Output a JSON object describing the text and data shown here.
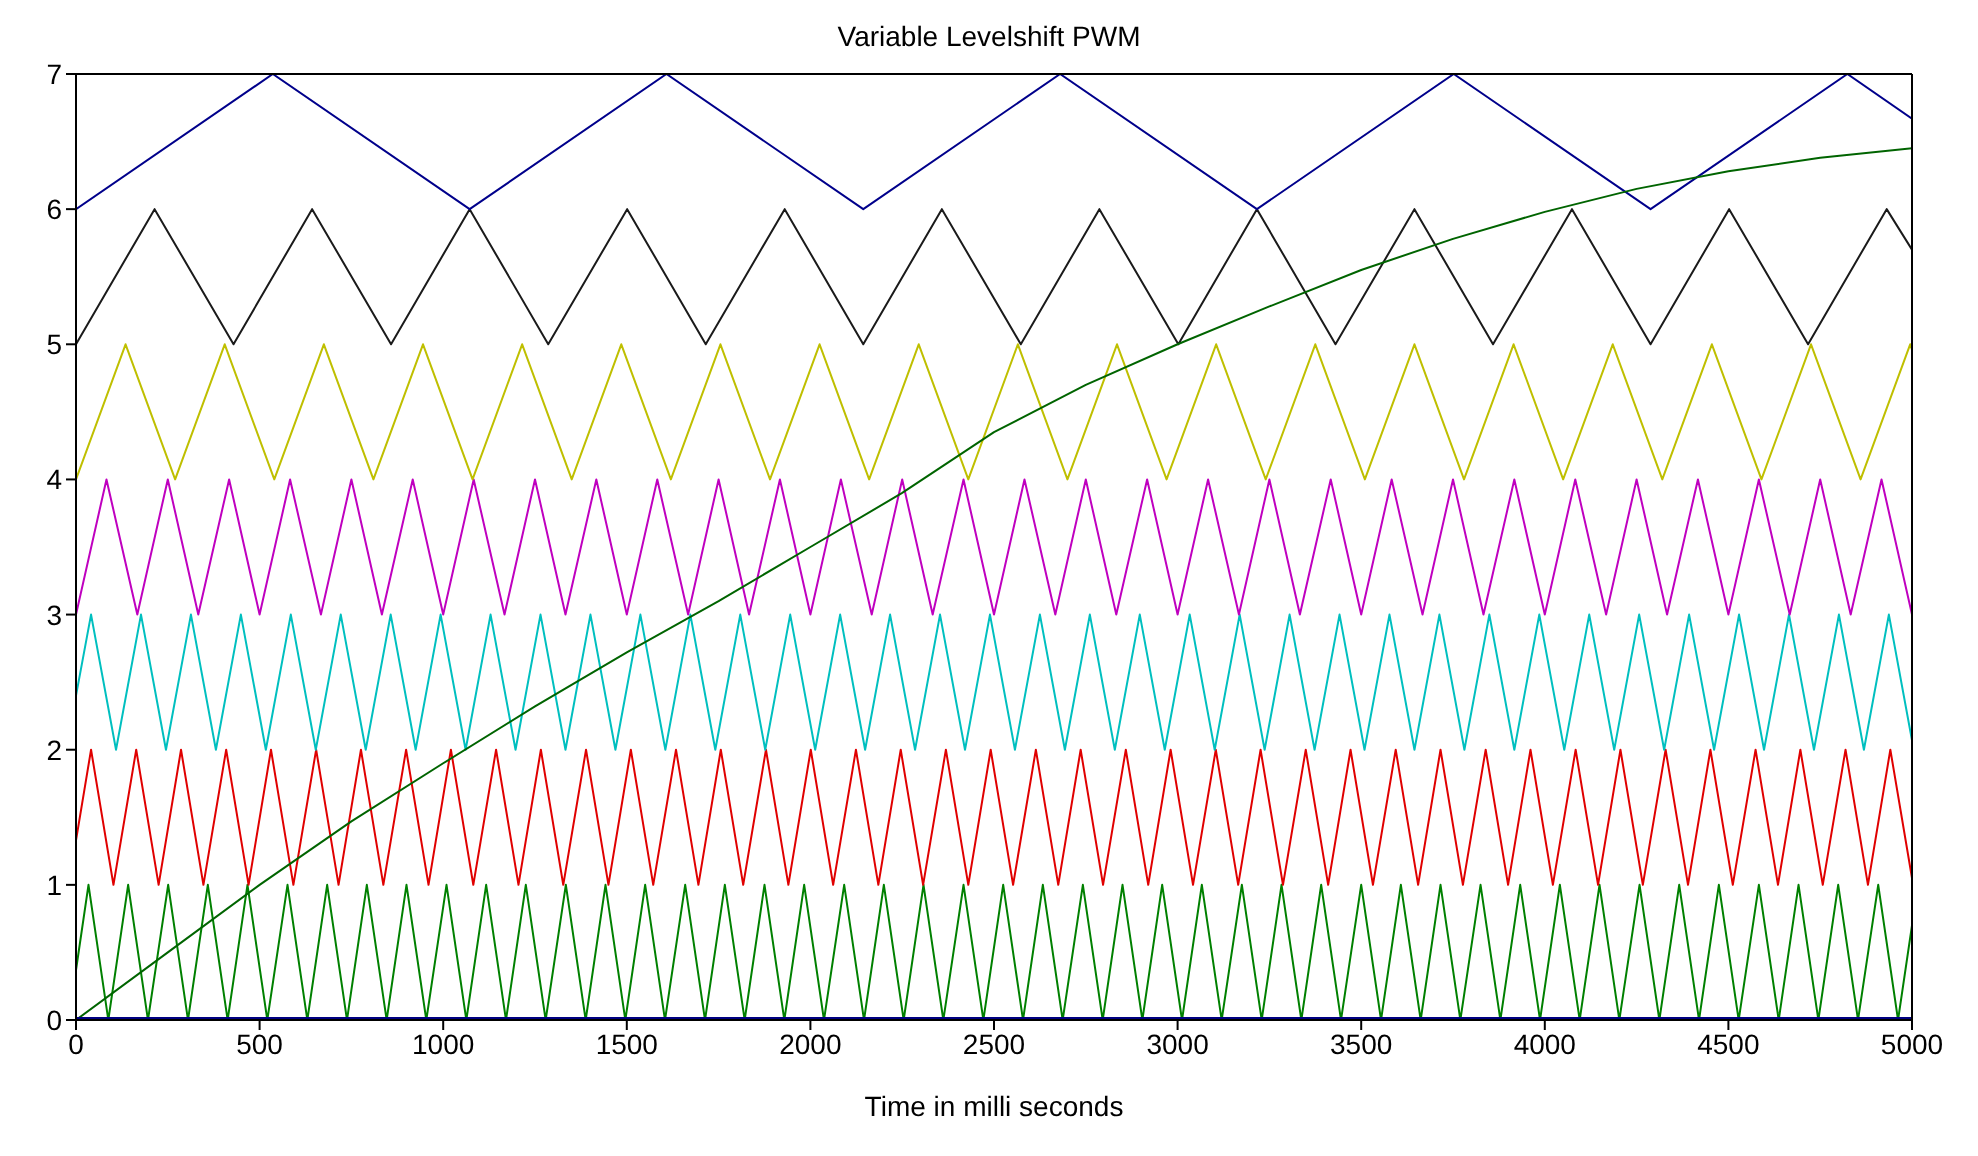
{
  "chart_data": {
    "type": "line",
    "title": "Variable Levelshift PWM",
    "xlabel": "Time in milli seconds",
    "xlim": [
      0,
      5000
    ],
    "xticks": [
      0,
      500,
      1000,
      1500,
      2000,
      2500,
      3000,
      3500,
      4000,
      4500,
      5000
    ],
    "ylim": [
      0,
      7
    ],
    "yticks": [
      0,
      1,
      2,
      3,
      4,
      5,
      6,
      7
    ],
    "grid": false,
    "marker": "none",
    "line_style": "solid",
    "series": [
      {
        "color": "#000080",
        "x": [
          0,
          5000
        ],
        "values": [
          0,
          0
        ]
      },
      {
        "color": "#008000",
        "x": [
          0,
          34,
          88,
          142,
          196,
          251,
          305,
          359,
          413,
          467,
          521,
          576,
          630,
          684,
          738,
          792,
          846,
          900,
          954,
          1009,
          1063,
          1117,
          1171,
          1225,
          1279,
          1334,
          1388,
          1442,
          1496,
          1550,
          1604,
          1659,
          1713,
          1767,
          1821,
          1875,
          1929,
          1983,
          2037,
          2092,
          2146,
          2200,
          2254,
          2308,
          2362,
          2417,
          2471,
          2525,
          2579,
          2633,
          2687,
          2742,
          2796,
          2850,
          2904,
          2958,
          3012,
          3066,
          3120,
          3175,
          3229,
          3283,
          3337,
          3391,
          3445,
          3500,
          3554,
          3608,
          3662,
          3716,
          3770,
          3825,
          3879,
          3933,
          3987,
          4041,
          4095,
          4149,
          4203,
          4258,
          4312,
          4366,
          4420,
          4474,
          4528,
          4583,
          4637,
          4691,
          4745,
          4799,
          4853,
          4908,
          4962,
          5000
        ],
        "values": [
          0.37,
          1,
          0,
          1,
          0,
          1,
          0,
          1,
          0,
          1,
          0,
          1,
          0,
          1,
          0,
          1,
          0,
          1,
          0,
          1,
          0,
          1,
          0,
          1,
          0,
          1,
          0,
          1,
          0,
          1,
          0,
          1,
          0,
          1,
          0,
          1,
          0,
          1,
          0,
          1,
          0,
          1,
          0,
          1,
          0,
          1,
          0,
          1,
          0,
          1,
          0,
          1,
          0,
          1,
          0,
          1,
          0,
          1,
          0,
          1,
          0,
          1,
          0,
          1,
          0,
          1,
          0,
          1,
          0,
          1,
          0,
          1,
          0,
          1,
          0,
          1,
          0,
          1,
          0,
          1,
          0,
          1,
          0,
          1,
          0,
          1,
          0,
          1,
          0,
          1,
          0,
          1,
          0,
          0.7
        ]
      },
      {
        "color": "#e00000",
        "x": [
          0,
          41,
          102,
          164,
          225,
          286,
          347,
          409,
          470,
          531,
          592,
          654,
          715,
          776,
          837,
          899,
          960,
          1021,
          1082,
          1144,
          1205,
          1266,
          1327,
          1389,
          1450,
          1511,
          1572,
          1634,
          1695,
          1756,
          1817,
          1879,
          1940,
          2001,
          2062,
          2124,
          2185,
          2246,
          2307,
          2369,
          2430,
          2491,
          2552,
          2614,
          2675,
          2736,
          2797,
          2859,
          2920,
          2981,
          3042,
          3104,
          3165,
          3226,
          3287,
          3349,
          3410,
          3471,
          3532,
          3594,
          3655,
          3716,
          3777,
          3839,
          3900,
          3961,
          4022,
          4084,
          4145,
          4206,
          4267,
          4329,
          4390,
          4451,
          4512,
          4574,
          4635,
          4696,
          4757,
          4819,
          4880,
          4941,
          5000
        ],
        "values": [
          1.33,
          2,
          1,
          2,
          1,
          2,
          1,
          2,
          1,
          2,
          1,
          2,
          1,
          2,
          1,
          2,
          1,
          2,
          1,
          2,
          1,
          2,
          1,
          2,
          1,
          2,
          1,
          2,
          1,
          2,
          1,
          2,
          1,
          2,
          1,
          2,
          1,
          2,
          1,
          2,
          1,
          2,
          1,
          2,
          1,
          2,
          1,
          2,
          1,
          2,
          1,
          2,
          1,
          2,
          1,
          2,
          1,
          2,
          1,
          2,
          1,
          2,
          1,
          2,
          1,
          2,
          1,
          2,
          1,
          2,
          1,
          2,
          1,
          2,
          1,
          2,
          1,
          2,
          1,
          2,
          1,
          2,
          1.05
        ]
      },
      {
        "color": "#00bfbf",
        "x": [
          0,
          41,
          109,
          177,
          245,
          313,
          381,
          449,
          517,
          585,
          653,
          721,
          789,
          857,
          925,
          993,
          1061,
          1129,
          1197,
          1265,
          1333,
          1401,
          1469,
          1537,
          1605,
          1673,
          1741,
          1809,
          1877,
          1945,
          2013,
          2081,
          2149,
          2217,
          2285,
          2353,
          2421,
          2489,
          2557,
          2625,
          2693,
          2761,
          2829,
          2897,
          2965,
          3033,
          3101,
          3169,
          3237,
          3305,
          3373,
          3441,
          3509,
          3577,
          3645,
          3713,
          3781,
          3849,
          3917,
          3985,
          4053,
          4121,
          4189,
          4257,
          4325,
          4393,
          4461,
          4529,
          4597,
          4665,
          4733,
          4801,
          4869,
          4937,
          5000
        ],
        "values": [
          2.4,
          3,
          2,
          3,
          2,
          3,
          2,
          3,
          2,
          3,
          2,
          3,
          2,
          3,
          2,
          3,
          2,
          3,
          2,
          3,
          2,
          3,
          2,
          3,
          2,
          3,
          2,
          3,
          2,
          3,
          2,
          3,
          2,
          3,
          2,
          3,
          2,
          3,
          2,
          3,
          2,
          3,
          2,
          3,
          2,
          3,
          2,
          3,
          2,
          3,
          2,
          3,
          2,
          3,
          2,
          3,
          2,
          3,
          2,
          3,
          2,
          3,
          2,
          3,
          2,
          3,
          2,
          3,
          2,
          3,
          2,
          3,
          2,
          3,
          2.07
        ]
      },
      {
        "color": "#bf00bf",
        "x": [
          0,
          83,
          167,
          250,
          333,
          417,
          500,
          583,
          667,
          750,
          833,
          917,
          1000,
          1083,
          1167,
          1250,
          1333,
          1417,
          1500,
          1583,
          1667,
          1750,
          1833,
          1917,
          2000,
          2083,
          2167,
          2250,
          2333,
          2417,
          2500,
          2583,
          2667,
          2750,
          2833,
          2917,
          3000,
          3083,
          3167,
          3250,
          3333,
          3417,
          3500,
          3583,
          3667,
          3750,
          3833,
          3917,
          4000,
          4083,
          4167,
          4250,
          4333,
          4417,
          4500,
          4583,
          4667,
          4750,
          4833,
          4917,
          5000
        ],
        "values": [
          3,
          4,
          3,
          4,
          3,
          4,
          3,
          4,
          3,
          4,
          3,
          4,
          3,
          4,
          3,
          4,
          3,
          4,
          3,
          4,
          3,
          4,
          3,
          4,
          3,
          4,
          3,
          4,
          3,
          4,
          3,
          4,
          3,
          4,
          3,
          4,
          3,
          4,
          3,
          4,
          3,
          4,
          3,
          4,
          3,
          4,
          3,
          4,
          3,
          4,
          3,
          4,
          3,
          4,
          3,
          4,
          3,
          4,
          3,
          4,
          3
        ]
      },
      {
        "color": "#bfbf00",
        "x": [
          0,
          135,
          270,
          405,
          540,
          675,
          810,
          945,
          1080,
          1215,
          1350,
          1485,
          1620,
          1755,
          1890,
          2025,
          2160,
          2295,
          2430,
          2565,
          2700,
          2835,
          2970,
          3105,
          3240,
          3375,
          3510,
          3645,
          3780,
          3915,
          4050,
          4185,
          4320,
          4455,
          4590,
          4725,
          4860,
          4995,
          5000
        ],
        "values": [
          4,
          5,
          4,
          5,
          4,
          5,
          4,
          5,
          4,
          5,
          4,
          5,
          4,
          5,
          4,
          5,
          4,
          5,
          4,
          5,
          4,
          5,
          4,
          5,
          4,
          5,
          4,
          5,
          4,
          5,
          4,
          5,
          4,
          5,
          4,
          5,
          4,
          5,
          4.96
        ]
      },
      {
        "color": "#1a1a1a",
        "x": [
          0,
          214,
          429,
          643,
          858,
          1072,
          1286,
          1501,
          1715,
          1930,
          2144,
          2358,
          2573,
          2787,
          3002,
          3216,
          3430,
          3645,
          3859,
          4074,
          4288,
          4502,
          4717,
          4931,
          5000
        ],
        "values": [
          5,
          6,
          5,
          6,
          5,
          6,
          5,
          6,
          5,
          6,
          5,
          6,
          5,
          6,
          5,
          6,
          5,
          6,
          5,
          6,
          5,
          6,
          5,
          6,
          5.7
        ]
      },
      {
        "color": "#00008b",
        "x": [
          0,
          536,
          1072,
          1608,
          2144,
          2680,
          3216,
          3752,
          4288,
          4824,
          5000
        ],
        "values": [
          6,
          7,
          6,
          7,
          6,
          7,
          6,
          7,
          6,
          7,
          6.67
        ]
      },
      {
        "color": "#006400",
        "x": [
          0,
          250,
          500,
          750,
          1000,
          1250,
          1500,
          1750,
          2000,
          2250,
          2500,
          2750,
          3000,
          3250,
          3500,
          3750,
          4000,
          4250,
          4500,
          4750,
          5000
        ],
        "values": [
          0,
          0.5,
          1.0,
          1.47,
          1.9,
          2.32,
          2.72,
          3.1,
          3.5,
          3.9,
          4.35,
          4.7,
          5.0,
          5.28,
          5.55,
          5.78,
          5.98,
          6.15,
          6.28,
          6.38,
          6.45
        ]
      }
    ]
  }
}
